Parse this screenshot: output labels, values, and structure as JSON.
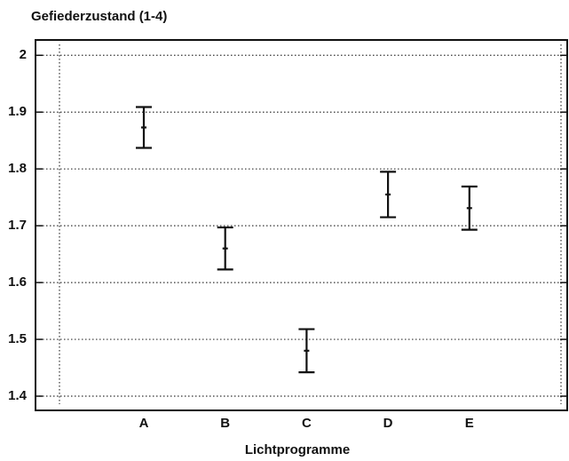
{
  "chart_data": {
    "type": "errorbar",
    "title": "Gefiederzustand (1-4)",
    "x_label": "Lichtprogramme",
    "categories": [
      "A",
      "B",
      "C",
      "D",
      "E"
    ],
    "values": [
      1.873,
      1.66,
      1.48,
      1.755,
      1.731
    ],
    "errors": [
      0.036,
      0.037,
      0.038,
      0.04,
      0.038
    ],
    "color": "#111111",
    "ylim": [
      1.375,
      2.027
    ],
    "yticks": [
      1.4,
      1.5,
      1.6,
      1.7,
      1.8,
      1.9,
      2
    ],
    "grid": true
  }
}
